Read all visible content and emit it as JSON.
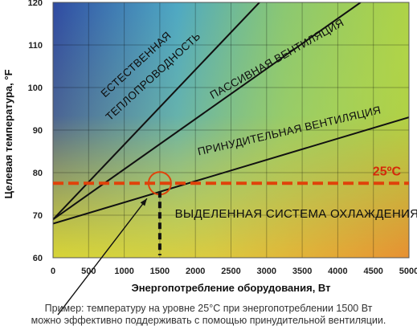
{
  "chart_data": {
    "type": "area",
    "xlabel": "Энергопотребление оборудования, Вт",
    "ylabel": "Целевая температура, °F",
    "xlim": [
      0,
      5000
    ],
    "ylim": [
      60,
      120
    ],
    "x_ticks": [
      0,
      500,
      1000,
      1500,
      2000,
      2500,
      3000,
      3500,
      4000,
      4500,
      5000
    ],
    "y_ticks": [
      60,
      70,
      80,
      90,
      100,
      110,
      120
    ],
    "grid": true,
    "boundaries": [
      {
        "points": [
          [
            0,
            68
          ],
          [
            5000,
            93
          ]
        ]
      },
      {
        "points": [
          [
            0,
            69
          ],
          [
            2900,
            120
          ]
        ]
      },
      {
        "points": [
          [
            0,
            69
          ],
          [
            4320,
            120
          ]
        ]
      }
    ],
    "regions": [
      {
        "name": "ВЫДЕЛЕННАЯ СИСТЕМА ОХЛАЖДЕНИЯ"
      },
      {
        "name": "ПРИНУДИТЕЛЬНАЯ ВЕНТИЛЯЦИЯ"
      },
      {
        "name": "ПАССИВНАЯ ВЕНТИЛЯЦИЯ"
      },
      {
        "name": "ЕСТЕСТВЕННАЯ",
        "name_line2": "ТЕПЛОПРОВОДНОСТЬ"
      }
    ],
    "reference_line": {
      "y": 77.5,
      "label": "25ºC",
      "color": "#e0420a"
    },
    "highlight_point": {
      "x": 1500,
      "y": 77.5
    },
    "drop_line_x": 1500,
    "colors": {
      "top_left": "#2f4aa2",
      "top_right": "#9ccc46",
      "bottom_left": "#fbe51a",
      "bottom_right": "#f36c2c"
    }
  },
  "caption": {
    "line1": "Пример: температуру на уровне 25°C при энергопотреблении 1500 Вт",
    "line2": "можно эффективно поддерживать с помощью принудительной вентиляции."
  }
}
